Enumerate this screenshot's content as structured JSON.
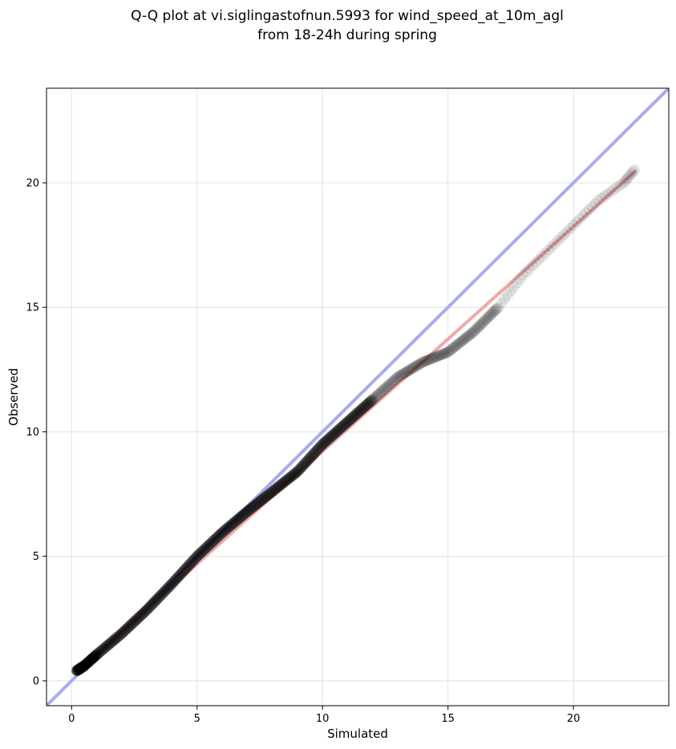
{
  "chart_data": {
    "type": "scatter",
    "title": "Q-Q plot at vi.siglingastofnun.5993 for wind_speed_at_10m_agl",
    "subtitle": "from 18-24h during spring",
    "xlabel": "Simulated",
    "ylabel": "Observed",
    "xlim": [
      -1.0,
      23.8
    ],
    "ylim": [
      -1.0,
      23.8
    ],
    "xticks": [
      0,
      5,
      10,
      15,
      20
    ],
    "yticks": [
      0,
      5,
      10,
      15,
      20
    ],
    "grid": true,
    "reference_line": {
      "from": [
        -1.0,
        -1.0
      ],
      "to": [
        23.8,
        23.8
      ],
      "color": "#aaaaf0"
    },
    "fit_line": {
      "from": [
        0.3,
        0.45
      ],
      "to": [
        22.5,
        20.5
      ],
      "color": "#f0a8a8"
    },
    "point_color": "#000000",
    "anchors": [
      [
        0.2,
        0.4
      ],
      [
        0.5,
        0.6
      ],
      [
        1.0,
        1.05
      ],
      [
        2.0,
        1.9
      ],
      [
        3.0,
        2.85
      ],
      [
        4.0,
        3.9
      ],
      [
        5.0,
        5.0
      ],
      [
        6.0,
        5.95
      ],
      [
        7.0,
        6.8
      ],
      [
        8.0,
        7.6
      ],
      [
        9.0,
        8.4
      ],
      [
        10.0,
        9.5
      ],
      [
        11.0,
        10.4
      ],
      [
        12.0,
        11.3
      ],
      [
        13.0,
        12.2
      ],
      [
        14.0,
        12.8
      ],
      [
        15.0,
        13.2
      ],
      [
        16.0,
        14.0
      ],
      [
        17.0,
        15.0
      ],
      [
        18.0,
        16.3
      ],
      [
        19.0,
        17.3
      ],
      [
        20.0,
        18.3
      ],
      [
        21.0,
        19.3
      ],
      [
        22.0,
        20.0
      ],
      [
        22.5,
        20.6
      ]
    ]
  }
}
